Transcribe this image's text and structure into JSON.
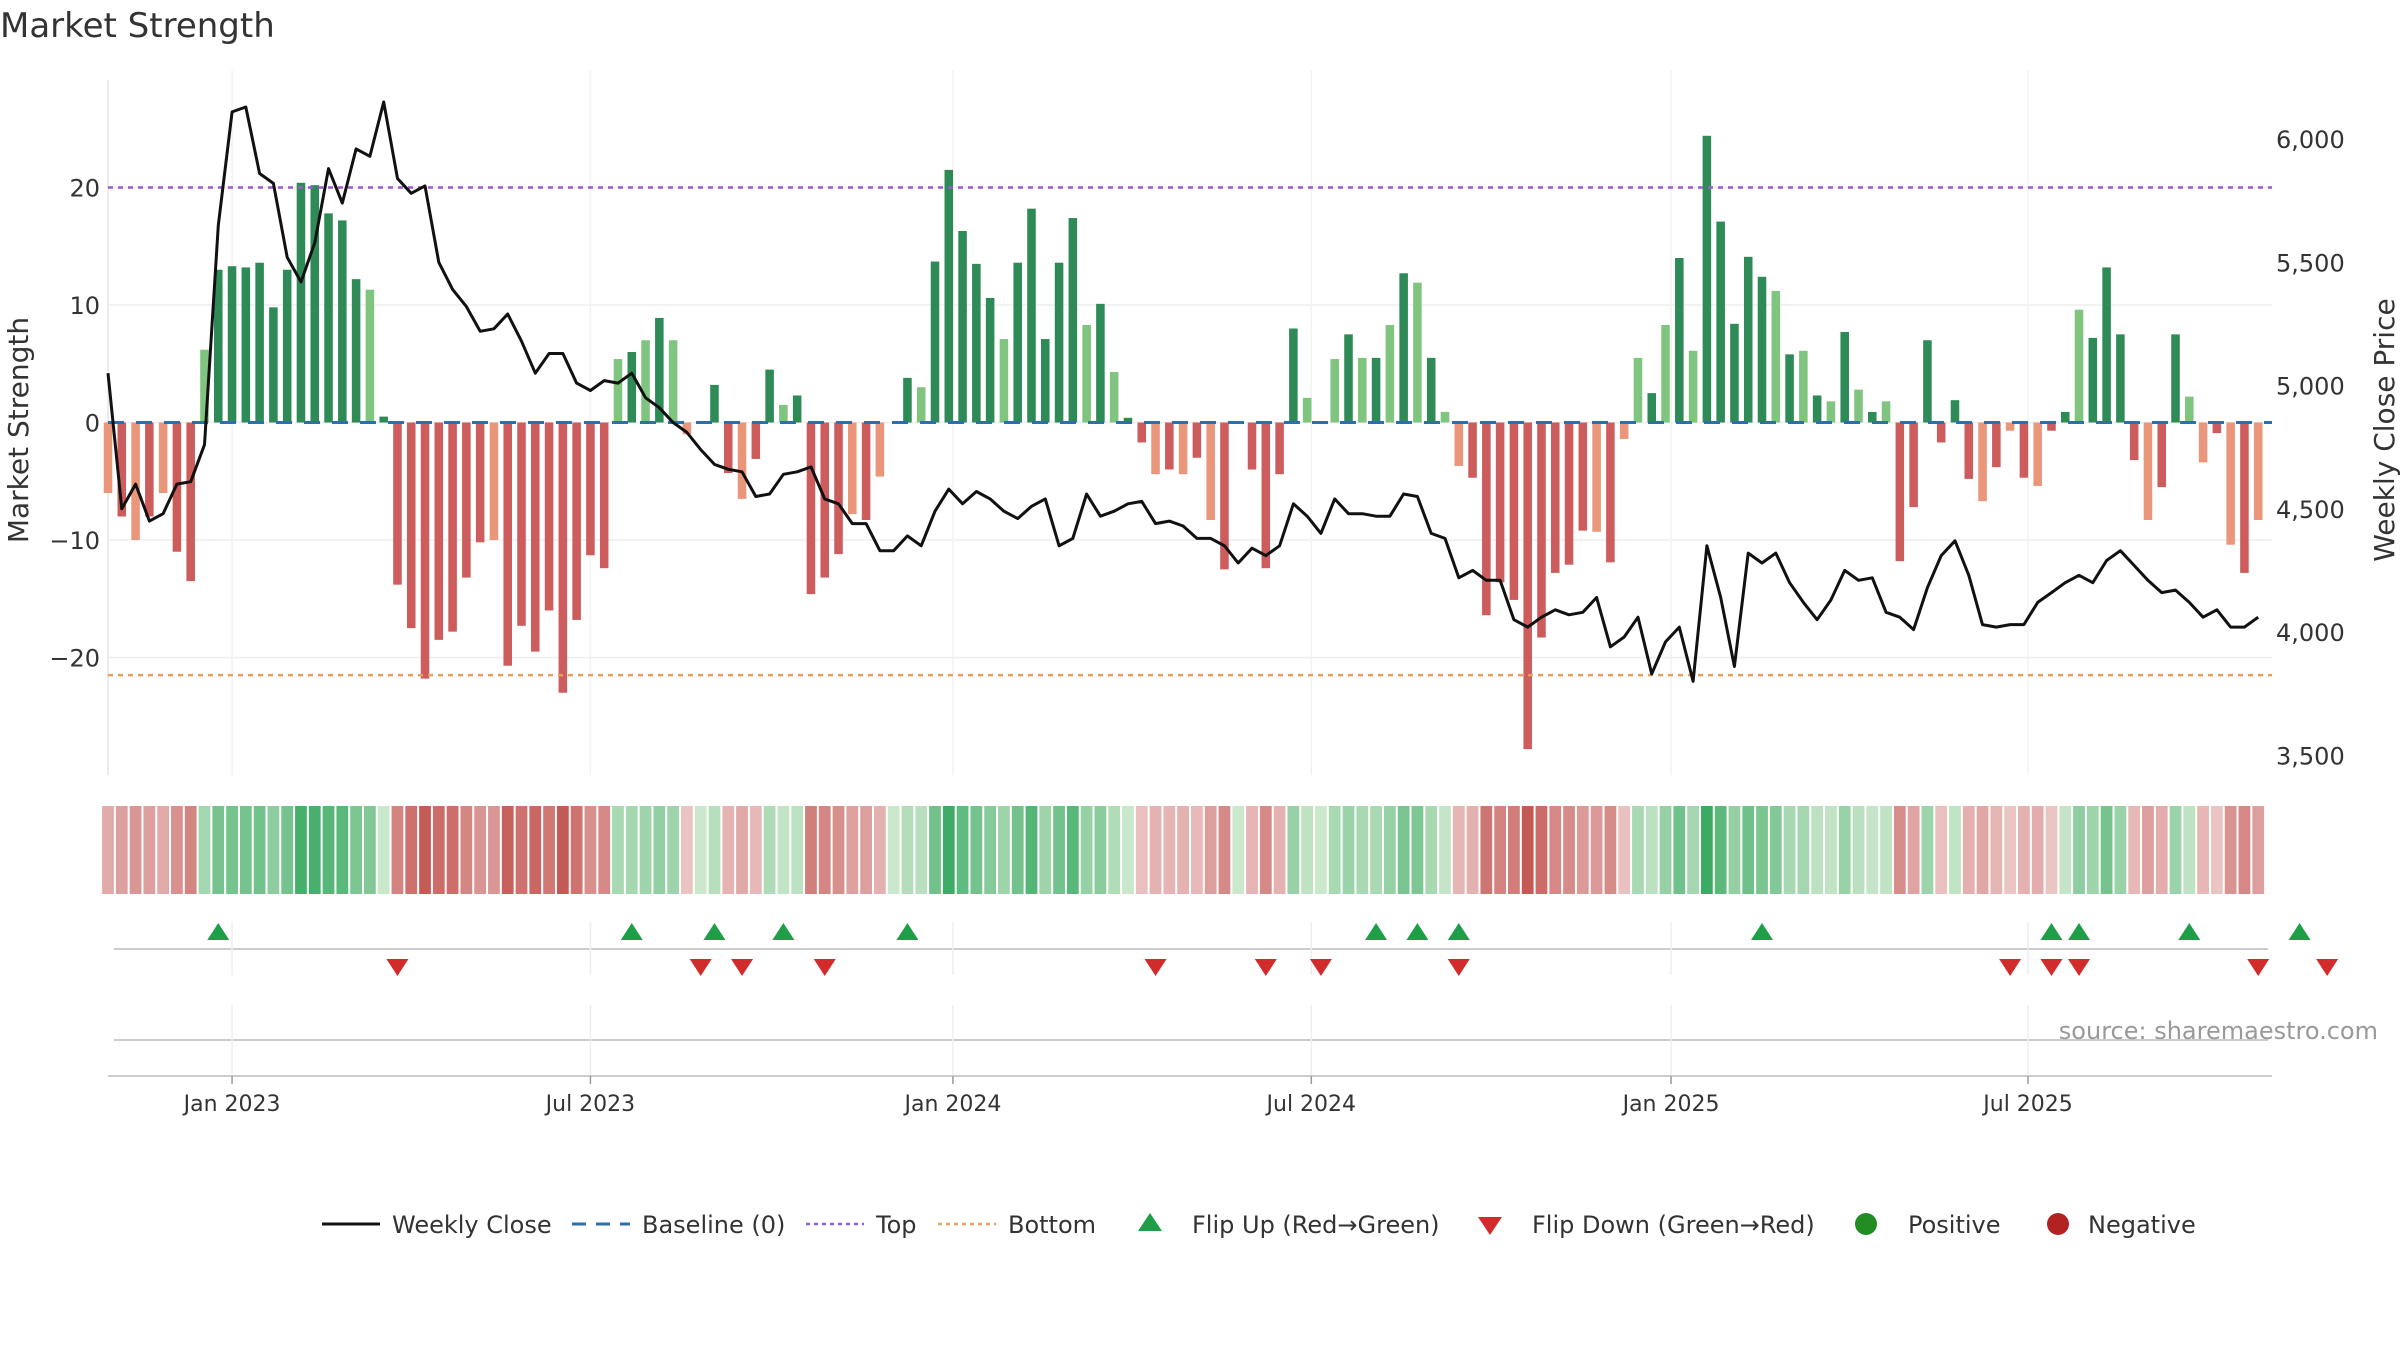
{
  "chart_data": {
    "type": "bar",
    "title": "Market Strength",
    "ylabel": "Market Strength",
    "y2label": "Weekly Close Price",
    "source": "source: sharemaestro.com",
    "ylim": [
      -30,
      30
    ],
    "y2lim": [
      3420,
      6280
    ],
    "yticks": [
      20,
      10,
      0,
      -10,
      -20
    ],
    "ytick_labels": [
      "20",
      "10",
      "0",
      "−10",
      "−20"
    ],
    "y2ticks": [
      6000,
      5500,
      5000,
      4500,
      4000,
      3500
    ],
    "y2tick_labels": [
      "6,000",
      "5,500",
      "5,000",
      "4,500",
      "4,000",
      "3,500"
    ],
    "x_start_week": -9,
    "x_end_week": 148,
    "xticks": [
      0,
      26,
      52.3,
      78.3,
      104.4,
      130.3
    ],
    "xtick_labels": [
      "Jan 2023",
      "Jul 2023",
      "Jan 2024",
      "Jul 2024",
      "Jan 2025",
      "Jul 2025"
    ],
    "reference_lines": {
      "top": 20,
      "bottom": -21.5,
      "baseline": 0
    },
    "colors": {
      "pos_strong": "#2e8b57",
      "pos_light": "#7fc47f",
      "neg_strong": "#cd5c5c",
      "neg_light": "#e9967a",
      "top_line": "#9b59d0",
      "bottom_line": "#e8a060",
      "baseline": "#2c6fad",
      "close": "#111111",
      "flip_up": "#1f9e48",
      "flip_down": "#d22b2b",
      "positive_dot": "#228b22",
      "negative_dot": "#b22222"
    },
    "strength": [
      -6,
      -8,
      -10,
      -8,
      -6,
      -11,
      -13.5,
      6.2,
      13,
      13.3,
      13.2,
      13.6,
      9.8,
      13,
      20.4,
      20.2,
      17.8,
      17.2,
      12.2,
      11.3,
      0.5,
      -13.8,
      -17.5,
      -21.8,
      -18.5,
      -17.8,
      -13.2,
      -10.2,
      -10,
      -20.7,
      -17.3,
      -19.5,
      -16,
      -23,
      -16.8,
      -11.3,
      -12.4,
      5.4,
      6,
      7,
      8.9,
      7,
      -1,
      0,
      3.2,
      -4.3,
      -6.5,
      -3.1,
      4.5,
      1.5,
      2.3,
      -14.6,
      -13.2,
      -11.2,
      -7.8,
      -8.3,
      -4.6,
      0,
      3.8,
      3,
      13.7,
      21.5,
      16.3,
      13.5,
      10.6,
      7.1,
      13.6,
      18.2,
      7.1,
      13.6,
      17.4,
      8.3,
      10.1,
      4.3,
      0.4,
      -1.7,
      -4.4,
      -4,
      -4.4,
      -3,
      -8.3,
      -12.5,
      0,
      -4,
      -12.4,
      -4.4,
      8,
      2.1,
      0,
      5.4,
      7.5,
      5.5,
      5.5,
      8.3,
      12.7,
      11.9,
      5.5,
      0.9,
      -3.7,
      -4.7,
      -16.4,
      -13.6,
      -15.1,
      -27.8,
      -18.3,
      -12.8,
      -12.1,
      -9.2,
      -9.3,
      -11.9,
      -1.4,
      5.5,
      2.5,
      8.3,
      14,
      6.1,
      24.4,
      17.1,
      8.4,
      14.1,
      12.4,
      11.2,
      5.8,
      6.1,
      2.3,
      1.8,
      7.7,
      2.8,
      0.9,
      1.8,
      -11.8,
      -7.2,
      7,
      -1.7,
      1.9,
      -4.8,
      -6.7,
      -3.8,
      -0.7,
      -4.7,
      -5.4,
      -0.7,
      0.9,
      9.6,
      7.2,
      13.2,
      7.5,
      -3.2,
      -8.3,
      -5.5,
      7.5,
      2.2,
      -3.4,
      -0.9,
      -10.4,
      -12.8,
      -8.3
    ],
    "close": [
      5050,
      4500,
      4600,
      4450,
      4480,
      4600,
      4610,
      4760,
      5650,
      6110,
      6130,
      5860,
      5820,
      5520,
      5420,
      5580,
      5880,
      5740,
      5960,
      5930,
      6150,
      5840,
      5780,
      5810,
      5500,
      5390,
      5320,
      5220,
      5230,
      5290,
      5180,
      5050,
      5130,
      5130,
      5010,
      4980,
      5020,
      5010,
      5050,
      4950,
      4910,
      4850,
      4810,
      4740,
      4680,
      4660,
      4650,
      4550,
      4560,
      4640,
      4650,
      4670,
      4540,
      4520,
      4440,
      4440,
      4330,
      4330,
      4390,
      4350,
      4490,
      4580,
      4520,
      4570,
      4540,
      4490,
      4460,
      4510,
      4540,
      4350,
      4380,
      4560,
      4470,
      4490,
      4520,
      4530,
      4440,
      4450,
      4430,
      4380,
      4380,
      4350,
      4280,
      4340,
      4310,
      4350,
      4520,
      4470,
      4400,
      4540,
      4480,
      4480,
      4470,
      4470,
      4560,
      4550,
      4400,
      4380,
      4220,
      4250,
      4210,
      4210,
      4050,
      4020,
      4060,
      4090,
      4070,
      4080,
      4140,
      3940,
      3980,
      4060,
      3830,
      3960,
      4020,
      3800,
      4350,
      4140,
      3860,
      4320,
      4280,
      4320,
      4200,
      4120,
      4050,
      4130,
      4250,
      4210,
      4220,
      4080,
      4060,
      4010,
      4180,
      4310,
      4370,
      4230,
      4030,
      4020,
      4030,
      4030,
      4120,
      4160,
      4200,
      4230,
      4200,
      4290,
      4330,
      4270,
      4210,
      4160,
      4170,
      4120,
      4060,
      4090,
      4020,
      4020,
      4060
    ],
    "flip_up_weeks": [
      -1,
      29,
      35,
      40,
      49,
      83,
      86,
      89,
      111,
      132,
      134,
      142,
      150
    ],
    "flip_down_weeks": [
      12,
      34,
      37,
      43,
      67,
      75,
      79,
      89,
      129,
      132,
      134,
      147,
      152
    ],
    "legend": [
      {
        "label": "Weekly Close",
        "kind": "line"
      },
      {
        "label": "Baseline (0)",
        "kind": "dash"
      },
      {
        "label": "Top",
        "kind": "dot-purple"
      },
      {
        "label": "Bottom",
        "kind": "dot-orange"
      },
      {
        "label": "Flip Up (Red→Green)",
        "kind": "tri-up"
      },
      {
        "label": "Flip Down (Green→Red)",
        "kind": "tri-down"
      },
      {
        "label": "Positive",
        "kind": "dot-green"
      },
      {
        "label": "Negative",
        "kind": "dot-red"
      }
    ]
  }
}
